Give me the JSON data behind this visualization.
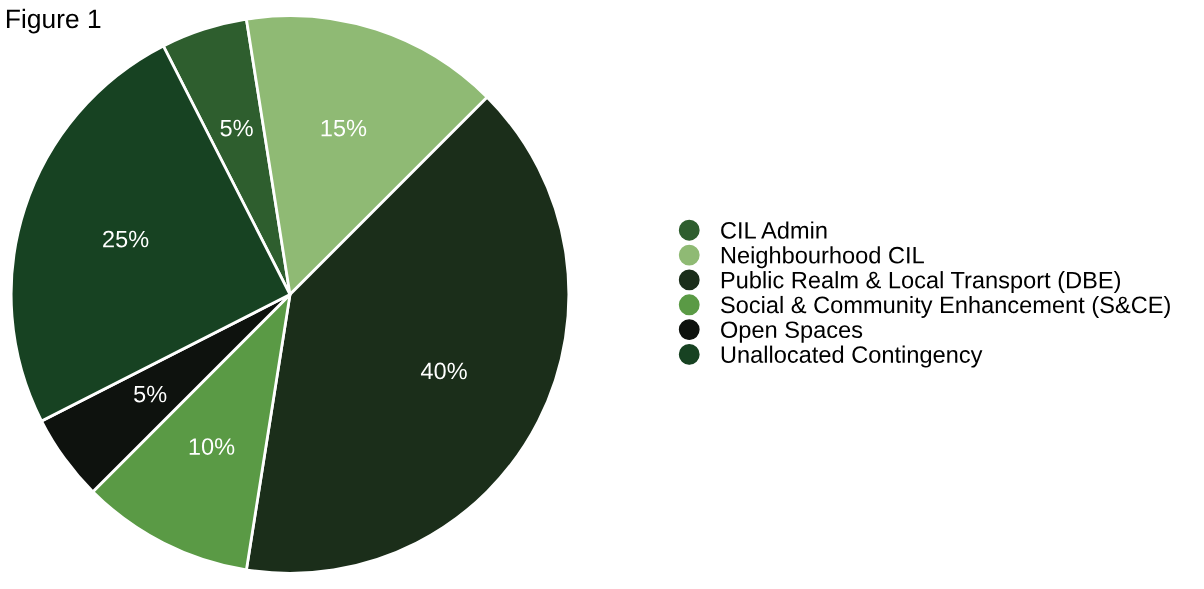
{
  "chart_data": {
    "type": "pie",
    "title": "Figure 1",
    "categories": [
      "CIL Admin",
      "Neighbourhood CIL",
      "Public Realm & Local Transport (DBE)",
      "Social & Community Enhancement (S&CE)",
      "Open Spaces",
      "Unallocated Contingency"
    ],
    "values": [
      5,
      15,
      40,
      10,
      5,
      25
    ],
    "value_labels": [
      "5%",
      "15%",
      "40%",
      "10%",
      "5%",
      "25%"
    ],
    "colors": [
      "#2e5e2e",
      "#8fba74",
      "#1b2e1a",
      "#5a9a45",
      "#0e120e",
      "#174222"
    ],
    "legend": "right"
  }
}
